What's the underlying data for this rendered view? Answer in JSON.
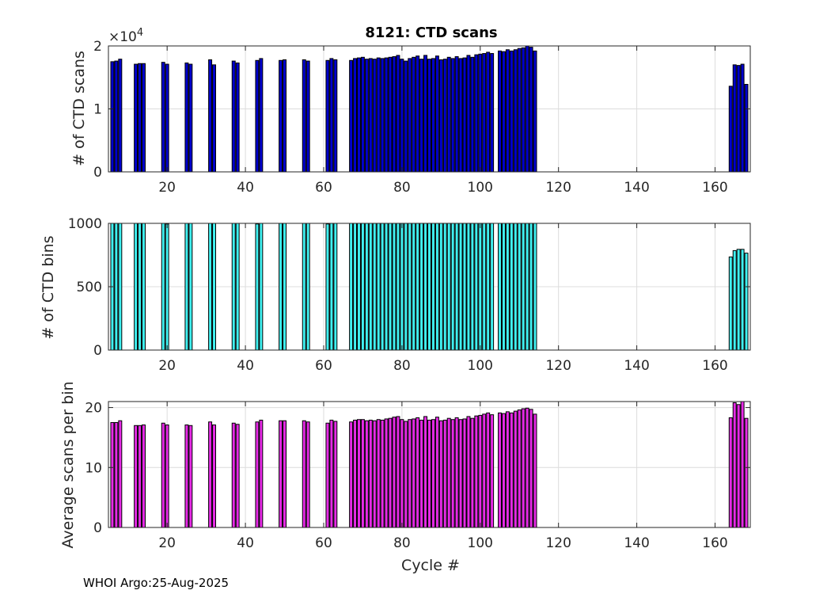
{
  "chart_data": [
    {
      "type": "bar",
      "title": "8121: CTD scans",
      "ylabel": "# of CTD scans",
      "xlabel": "",
      "exponent_label": "×10",
      "exponent_power": "4",
      "color": "#0000cd",
      "xlim": [
        5,
        169
      ],
      "ylim": [
        0,
        2
      ],
      "xticks": [
        20,
        40,
        60,
        80,
        100,
        120,
        140,
        160
      ],
      "yticks": [
        0,
        1,
        2
      ],
      "x": [
        6,
        7,
        8,
        12,
        13,
        14,
        19,
        20,
        25,
        26,
        31,
        32,
        37,
        38,
        43,
        44,
        49,
        50,
        55,
        56,
        61,
        62,
        63,
        67,
        68,
        69,
        70,
        71,
        72,
        73,
        74,
        75,
        76,
        77,
        78,
        79,
        80,
        81,
        82,
        83,
        84,
        85,
        86,
        87,
        88,
        89,
        90,
        91,
        92,
        93,
        94,
        95,
        96,
        97,
        98,
        99,
        100,
        101,
        102,
        103,
        105,
        106,
        107,
        108,
        109,
        110,
        111,
        112,
        113,
        114,
        164,
        165,
        166,
        167,
        168
      ],
      "values": [
        1.75,
        1.76,
        1.79,
        1.71,
        1.72,
        1.72,
        1.74,
        1.71,
        1.73,
        1.71,
        1.78,
        1.7,
        1.76,
        1.73,
        1.77,
        1.8,
        1.77,
        1.78,
        1.78,
        1.76,
        1.77,
        1.8,
        1.78,
        1.77,
        1.8,
        1.81,
        1.82,
        1.79,
        1.8,
        1.79,
        1.81,
        1.8,
        1.81,
        1.82,
        1.83,
        1.85,
        1.79,
        1.76,
        1.8,
        1.82,
        1.84,
        1.79,
        1.85,
        1.79,
        1.8,
        1.84,
        1.78,
        1.79,
        1.82,
        1.8,
        1.83,
        1.8,
        1.81,
        1.85,
        1.82,
        1.86,
        1.87,
        1.88,
        1.9,
        1.88,
        1.92,
        1.91,
        1.94,
        1.92,
        1.94,
        1.96,
        1.97,
        2.0,
        1.98,
        1.92,
        1.36,
        1.7,
        1.69,
        1.71,
        1.39
      ]
    },
    {
      "type": "bar",
      "title": "",
      "ylabel": "# of CTD bins",
      "xlabel": "",
      "color": "#40f0f0",
      "xlim": [
        5,
        169
      ],
      "ylim": [
        0,
        1000
      ],
      "xticks": [
        20,
        40,
        60,
        80,
        100,
        120,
        140,
        160
      ],
      "yticks": [
        0,
        500,
        1000
      ],
      "x": [
        6,
        7,
        8,
        12,
        13,
        14,
        19,
        20,
        25,
        26,
        31,
        32,
        37,
        38,
        43,
        44,
        49,
        50,
        55,
        56,
        61,
        62,
        63,
        67,
        68,
        69,
        70,
        71,
        72,
        73,
        74,
        75,
        76,
        77,
        78,
        79,
        80,
        81,
        82,
        83,
        84,
        85,
        86,
        87,
        88,
        89,
        90,
        91,
        92,
        93,
        94,
        95,
        96,
        97,
        98,
        99,
        100,
        101,
        102,
        103,
        105,
        106,
        107,
        108,
        109,
        110,
        111,
        112,
        113,
        114,
        164,
        165,
        166,
        167,
        168
      ],
      "values": [
        1000,
        1000,
        1000,
        1000,
        1000,
        1000,
        1000,
        995,
        1000,
        1000,
        1000,
        1000,
        1000,
        1000,
        995,
        1000,
        1000,
        1000,
        1002,
        1000,
        995,
        1000,
        1002,
        1000,
        1000,
        1000,
        1000,
        1000,
        1002,
        1000,
        1000,
        1000,
        1002,
        1000,
        1002,
        1000,
        1000,
        1000,
        1000,
        1000,
        1000,
        1000,
        1000,
        1000,
        1000,
        1002,
        1000,
        1000,
        1002,
        1000,
        1002,
        1000,
        1000,
        1002,
        1000,
        1000,
        1000,
        1002,
        1000,
        1002,
        1002,
        1002,
        1002,
        1002,
        1002,
        1002,
        1002,
        1002,
        1002,
        1002,
        735,
        785,
        795,
        795,
        765
      ]
    },
    {
      "type": "bar",
      "title": "",
      "ylabel": "Average scans per bin",
      "xlabel": "Cycle #",
      "color": "#e62ae6",
      "xlim": [
        5,
        169
      ],
      "ylim": [
        0,
        21
      ],
      "xticks": [
        20,
        40,
        60,
        80,
        100,
        120,
        140,
        160
      ],
      "yticks": [
        0,
        10,
        20
      ],
      "x": [
        6,
        7,
        8,
        12,
        13,
        14,
        19,
        20,
        25,
        26,
        31,
        32,
        37,
        38,
        43,
        44,
        49,
        50,
        55,
        56,
        61,
        62,
        63,
        67,
        68,
        69,
        70,
        71,
        72,
        73,
        74,
        75,
        76,
        77,
        78,
        79,
        80,
        81,
        82,
        83,
        84,
        85,
        86,
        87,
        88,
        89,
        90,
        91,
        92,
        93,
        94,
        95,
        96,
        97,
        98,
        99,
        100,
        101,
        102,
        103,
        105,
        106,
        107,
        108,
        109,
        110,
        111,
        112,
        113,
        114,
        164,
        165,
        166,
        167,
        168
      ],
      "values": [
        17.5,
        17.5,
        17.8,
        17.0,
        17.0,
        17.1,
        17.4,
        17.1,
        17.1,
        17.0,
        17.6,
        17.1,
        17.4,
        17.2,
        17.6,
        17.9,
        17.8,
        17.8,
        17.8,
        17.6,
        17.4,
        17.9,
        17.7,
        17.6,
        17.9,
        18.0,
        18.0,
        17.8,
        17.9,
        17.8,
        18.0,
        17.9,
        18.1,
        18.2,
        18.4,
        18.5,
        18.0,
        17.7,
        18.0,
        18.1,
        18.3,
        17.9,
        18.5,
        17.9,
        18.0,
        18.4,
        17.8,
        17.9,
        18.2,
        18.0,
        18.3,
        18.0,
        18.1,
        18.5,
        18.2,
        18.6,
        18.7,
        18.9,
        19.1,
        18.8,
        19.1,
        19.0,
        19.3,
        19.1,
        19.4,
        19.6,
        19.8,
        19.9,
        19.7,
        18.9,
        18.3,
        20.8,
        20.5,
        21.0,
        18.2
      ]
    }
  ],
  "footer": "WHOI Argo:25-Aug-2025"
}
